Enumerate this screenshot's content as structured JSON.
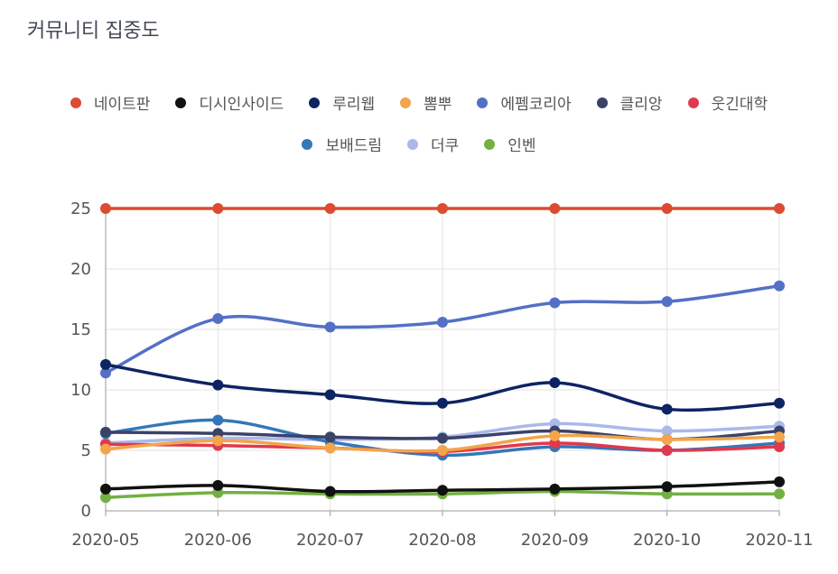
{
  "chart_data": {
    "type": "line",
    "title": "커뮤니티 집중도",
    "categories": [
      "2020-05",
      "2020-06",
      "2020-07",
      "2020-08",
      "2020-09",
      "2020-10",
      "2020-11"
    ],
    "ylim": [
      0,
      25
    ],
    "yticks": [
      "0",
      "5",
      "10",
      "15",
      "20",
      "25"
    ],
    "grid": true,
    "legend_position": "top-center",
    "series": [
      {
        "name": "네이트판",
        "color": "#dc4b32",
        "values": [
          25,
          25,
          25,
          25,
          25,
          25,
          25
        ]
      },
      {
        "name": "디시인사이드",
        "color": "#111111",
        "values": [
          1.8,
          2.1,
          1.6,
          1.7,
          1.8,
          2.0,
          2.4
        ]
      },
      {
        "name": "루리웹",
        "color": "#0d2462",
        "values": [
          12.1,
          10.4,
          9.6,
          8.9,
          10.6,
          8.4,
          8.9
        ]
      },
      {
        "name": "뽐뿌",
        "color": "#f2a54a",
        "values": [
          5.1,
          5.8,
          5.2,
          5.0,
          6.2,
          5.9,
          6.1
        ]
      },
      {
        "name": "에펨코리아",
        "color": "#5470c6",
        "values": [
          11.4,
          15.9,
          15.2,
          15.6,
          17.2,
          17.3,
          18.6
        ]
      },
      {
        "name": "클리앙",
        "color": "#3b4268",
        "values": [
          6.5,
          6.4,
          6.1,
          6.0,
          6.6,
          5.9,
          6.6
        ]
      },
      {
        "name": "웃긴대학",
        "color": "#e0394d",
        "values": [
          5.5,
          5.4,
          5.2,
          4.9,
          5.6,
          5.0,
          5.3
        ]
      },
      {
        "name": "보배드림",
        "color": "#3377b8",
        "values": [
          6.4,
          7.5,
          5.7,
          4.6,
          5.3,
          5.0,
          5.6
        ]
      },
      {
        "name": "더쿠",
        "color": "#aab8ec",
        "values": [
          5.6,
          6.0,
          5.9,
          6.1,
          7.2,
          6.6,
          7.0
        ]
      },
      {
        "name": "인벤",
        "color": "#72b043",
        "values": [
          1.1,
          1.5,
          1.4,
          1.4,
          1.6,
          1.4,
          1.4
        ]
      }
    ]
  }
}
